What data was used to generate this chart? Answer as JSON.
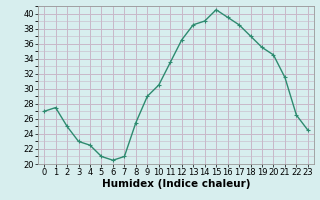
{
  "x": [
    0,
    1,
    2,
    3,
    4,
    5,
    6,
    7,
    8,
    9,
    10,
    11,
    12,
    13,
    14,
    15,
    16,
    17,
    18,
    19,
    20,
    21,
    22,
    23
  ],
  "y": [
    27,
    27.5,
    25,
    23,
    22.5,
    21,
    20.5,
    21,
    25.5,
    29,
    30.5,
    33.5,
    36.5,
    38.5,
    39,
    40.5,
    39.5,
    38.5,
    37,
    35.5,
    34.5,
    31.5,
    26.5,
    24.5
  ],
  "line_color": "#2e8b70",
  "marker": "+",
  "marker_size": 3,
  "xlabel": "Humidex (Indice chaleur)",
  "xlabel_fontsize": 7.5,
  "ylim": [
    20,
    41
  ],
  "xlim": [
    -0.5,
    23.5
  ],
  "yticks": [
    20,
    22,
    24,
    26,
    28,
    30,
    32,
    34,
    36,
    38,
    40
  ],
  "xticks": [
    0,
    1,
    2,
    3,
    4,
    5,
    6,
    7,
    8,
    9,
    10,
    11,
    12,
    13,
    14,
    15,
    16,
    17,
    18,
    19,
    20,
    21,
    22,
    23
  ],
  "background_color": "#d7eeee",
  "grid_color": "#c8b8c8",
  "tick_fontsize": 6,
  "line_width": 1.0
}
